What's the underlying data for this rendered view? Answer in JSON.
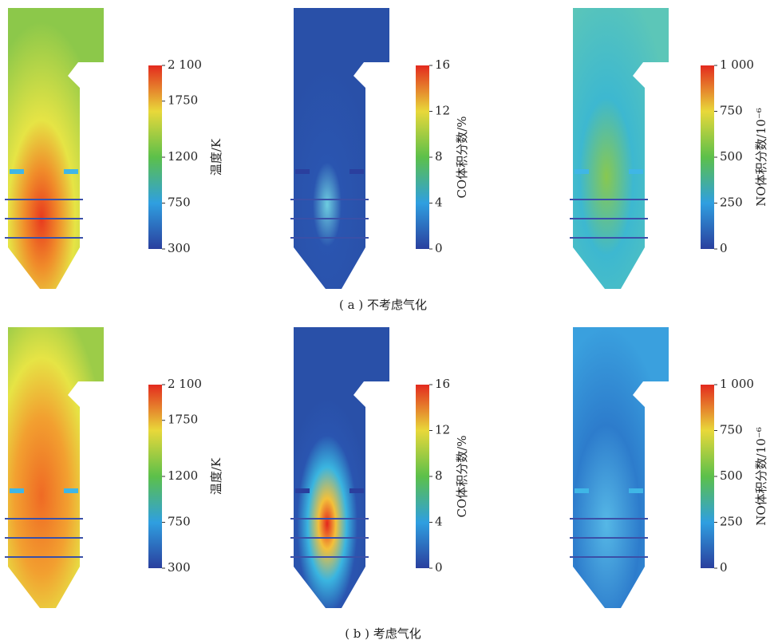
{
  "rows": [
    {
      "caption": "( a ) 不考虑气化",
      "panels": [
        {
          "colorbar": {
            "label": "温度/K",
            "lim": [
              300,
              2100
            ],
            "ticks": [
              300,
              750,
              1200,
              1750,
              {
                "value": 2100,
                "label": "2 100"
              }
            ]
          }
        },
        {
          "colorbar": {
            "label": "CO体积分数/%",
            "lim": [
              0,
              16
            ],
            "ticks": [
              0,
              4,
              8,
              12,
              16
            ]
          }
        },
        {
          "colorbar": {
            "label": "NO体积分数/10⁻⁶",
            "lim": [
              0,
              1000
            ],
            "ticks": [
              0,
              250,
              500,
              750,
              {
                "value": 1000,
                "label": "1 000"
              }
            ]
          }
        }
      ]
    },
    {
      "caption": "( b ) 考虑气化",
      "panels": [
        {
          "colorbar": {
            "label": "温度/K",
            "lim": [
              300,
              2100
            ],
            "ticks": [
              300,
              750,
              1200,
              1750,
              {
                "value": 2100,
                "label": "2 100"
              }
            ]
          }
        },
        {
          "colorbar": {
            "label": "CO体积分数/%",
            "lim": [
              0,
              16
            ],
            "ticks": [
              0,
              4,
              8,
              12,
              16
            ]
          }
        },
        {
          "colorbar": {
            "label": "NO体积分数/10⁻⁶",
            "lim": [
              0,
              1000
            ],
            "ticks": [
              0,
              250,
              500,
              750,
              {
                "value": 1000,
                "label": "1 000"
              }
            ]
          }
        }
      ]
    }
  ]
}
